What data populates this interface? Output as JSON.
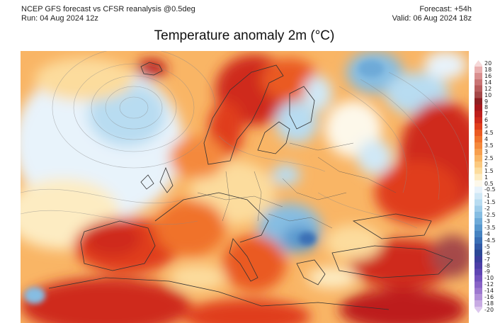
{
  "header": {
    "left_line1": "NCEP GFS forecast vs CFSR reanalysis @0.5deg",
    "left_line2": "Run: 04 Aug 2024 12z",
    "right_line1": "Forecast: +54h",
    "right_line2": "Valid: 06 Aug 2024 18z"
  },
  "title": "Temperature anomaly 2m (°C)",
  "colorbar": {
    "ticks": [
      "20",
      "18",
      "16",
      "14",
      "12",
      "10",
      "9",
      "8",
      "7",
      "6",
      "5",
      "4.5",
      "4",
      "3.5",
      "3",
      "2.5",
      "2",
      "1.5",
      "1",
      "0.5",
      "-0.5",
      "-1",
      "-1.5",
      "-2",
      "-2.5",
      "-3",
      "-3.5",
      "-4",
      "-4.5",
      "-5",
      "-6",
      "-7",
      "-8",
      "-9",
      "-10",
      "-12",
      "-14",
      "-16",
      "-18",
      "-20"
    ],
    "colors": [
      "#f6d9d9",
      "#eab0b0",
      "#d98f8f",
      "#c97474",
      "#b85c5c",
      "#a54848",
      "#8e1f22",
      "#a8171c",
      "#bd1f1c",
      "#cf2a1c",
      "#e03e1c",
      "#ea5a22",
      "#f0722c",
      "#f4893c",
      "#f79f4e",
      "#f9b565",
      "#fbc97f",
      "#fcdc9d",
      "#fdecc2",
      "#fdf8ea",
      "#e8f3fb",
      "#d0e8f6",
      "#b8dcf1",
      "#9fcdea",
      "#86bde2",
      "#6eaad8",
      "#5897cd",
      "#4683c1",
      "#3a6fb5",
      "#3259a6",
      "#2b4896",
      "#3a3e9d",
      "#4c3ea7",
      "#5f45b3",
      "#7352bd",
      "#8863c6",
      "#9d78cf",
      "#b291d9",
      "#c8abe3",
      "#ddc8ee"
    ]
  }
}
